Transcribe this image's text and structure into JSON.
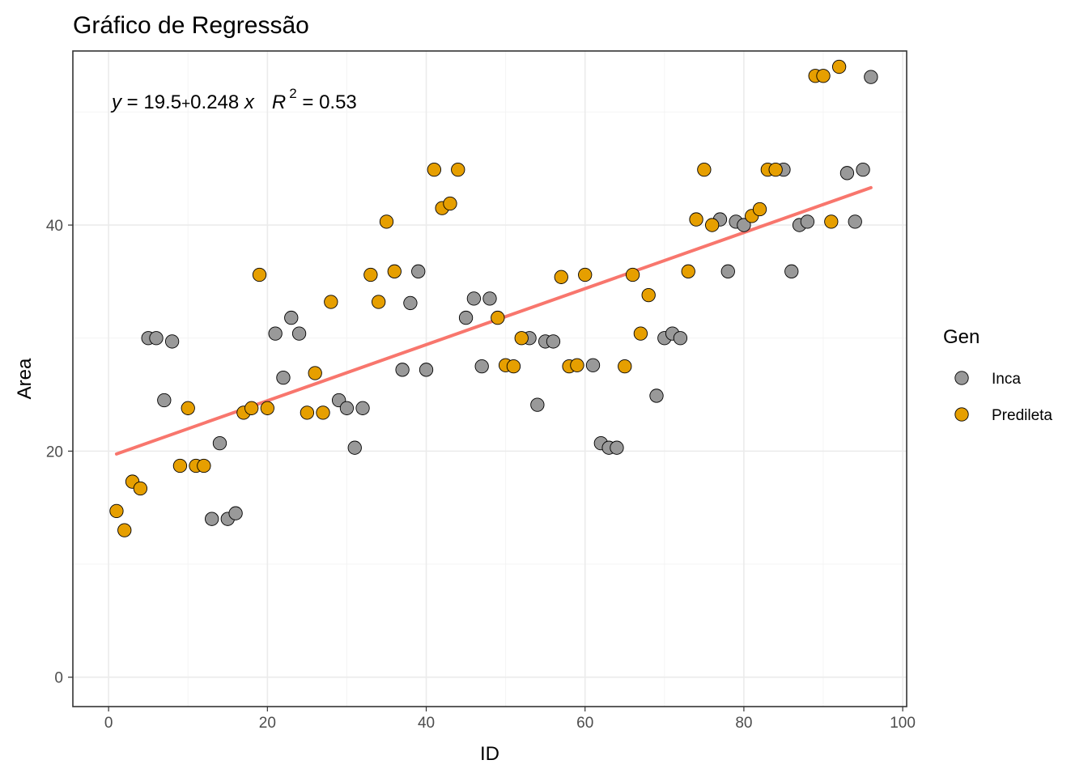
{
  "chart_data": {
    "type": "scatter",
    "title": "Gráfico de Regressão",
    "xlabel": "ID",
    "ylabel": "Area",
    "xlim": [
      -4.5,
      100.5
    ],
    "ylim": [
      -2.6,
      55.4
    ],
    "x_ticks": [
      0,
      20,
      40,
      60,
      80,
      100
    ],
    "y_ticks": [
      0,
      20,
      40
    ],
    "x_tick_labels": [
      "0",
      "20",
      "40",
      "60",
      "80",
      "100"
    ],
    "y_tick_labels": [
      "0",
      "20",
      "40"
    ],
    "grid": true,
    "legend": {
      "title": "Gen",
      "position": "right",
      "entries": [
        {
          "label": "Inca",
          "color": "#999999"
        },
        {
          "label": "Predileta",
          "color": "#E69F00"
        }
      ]
    },
    "annotation": {
      "equation_y": "y",
      "equation_rest": " = 19.5",
      "plus": "+",
      "slope_part": "0.248 ",
      "equation_x": "x",
      "r_symbol": "R",
      "r_exp": "2",
      "r_value": " = 0.53"
    },
    "regression": {
      "intercept": 19.5,
      "slope": 0.248,
      "x_range": [
        1,
        96
      ],
      "color": "#F8766D"
    },
    "series": [
      {
        "name": "Inca",
        "color": "#999999",
        "points": [
          [
            5,
            30
          ],
          [
            6,
            30
          ],
          [
            7,
            24.5
          ],
          [
            8,
            29.7
          ],
          [
            13,
            14
          ],
          [
            14,
            20.7
          ],
          [
            15,
            14
          ],
          [
            16,
            14.5
          ],
          [
            21,
            30.4
          ],
          [
            22,
            26.5
          ],
          [
            23,
            31.8
          ],
          [
            24,
            30.4
          ],
          [
            29,
            24.5
          ],
          [
            30,
            23.8
          ],
          [
            31,
            20.3
          ],
          [
            32,
            23.8
          ],
          [
            37,
            27.2
          ],
          [
            38,
            33.1
          ],
          [
            39,
            35.9
          ],
          [
            40,
            27.2
          ],
          [
            45,
            31.8
          ],
          [
            46,
            33.5
          ],
          [
            47,
            27.5
          ],
          [
            48,
            33.5
          ],
          [
            53,
            30
          ],
          [
            54,
            24.1
          ],
          [
            55,
            29.7
          ],
          [
            56,
            29.7
          ],
          [
            61,
            27.6
          ],
          [
            62,
            20.7
          ],
          [
            63,
            20.3
          ],
          [
            64,
            20.3
          ],
          [
            69,
            24.9
          ],
          [
            70,
            30
          ],
          [
            71,
            30.4
          ],
          [
            72,
            30
          ],
          [
            77,
            40.5
          ],
          [
            78,
            35.9
          ],
          [
            79,
            40.3
          ],
          [
            80,
            40
          ],
          [
            85,
            44.9
          ],
          [
            86,
            35.9
          ],
          [
            87,
            40
          ],
          [
            88,
            40.3
          ],
          [
            93,
            44.6
          ],
          [
            94,
            40.3
          ],
          [
            95,
            44.9
          ],
          [
            96,
            53.1
          ]
        ]
      },
      {
        "name": "Predileta",
        "color": "#E69F00",
        "points": [
          [
            1,
            14.7
          ],
          [
            2,
            13
          ],
          [
            3,
            17.3
          ],
          [
            4,
            16.7
          ],
          [
            9,
            18.7
          ],
          [
            10,
            23.8
          ],
          [
            11,
            18.7
          ],
          [
            12,
            18.7
          ],
          [
            17,
            23.4
          ],
          [
            18,
            23.8
          ],
          [
            19,
            35.6
          ],
          [
            20,
            23.8
          ],
          [
            25,
            23.4
          ],
          [
            26,
            26.9
          ],
          [
            27,
            23.4
          ],
          [
            28,
            33.2
          ],
          [
            33,
            35.6
          ],
          [
            34,
            33.2
          ],
          [
            35,
            40.3
          ],
          [
            36,
            35.9
          ],
          [
            41,
            44.9
          ],
          [
            42,
            41.5
          ],
          [
            43,
            41.9
          ],
          [
            44,
            44.9
          ],
          [
            49,
            31.8
          ],
          [
            50,
            27.6
          ],
          [
            51,
            27.5
          ],
          [
            52,
            30
          ],
          [
            57,
            35.4
          ],
          [
            58,
            27.5
          ],
          [
            59,
            27.6
          ],
          [
            60,
            35.6
          ],
          [
            65,
            27.5
          ],
          [
            66,
            35.6
          ],
          [
            67,
            30.4
          ],
          [
            68,
            33.8
          ],
          [
            73,
            35.9
          ],
          [
            74,
            40.5
          ],
          [
            75,
            44.9
          ],
          [
            76,
            40
          ],
          [
            81,
            40.8
          ],
          [
            82,
            41.4
          ],
          [
            83,
            44.9
          ],
          [
            84,
            44.9
          ],
          [
            89,
            53.2
          ],
          [
            90,
            53.2
          ],
          [
            91,
            40.3
          ],
          [
            92,
            54
          ]
        ]
      }
    ]
  }
}
